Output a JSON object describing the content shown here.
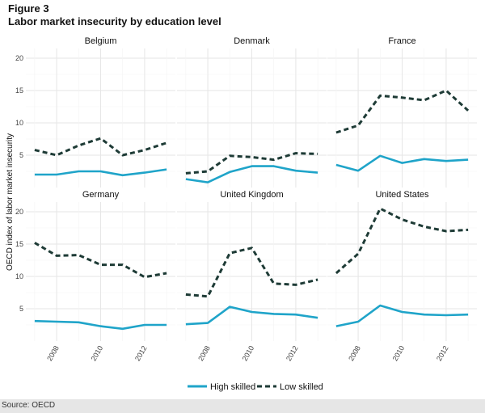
{
  "figure_label": "Figure 3",
  "title": "Labor market insecurity by education level",
  "source": "Source: OECD",
  "chart_data": {
    "type": "line",
    "ylabel": "OECD index of labor market insecurity",
    "xlabel": "",
    "x": [
      2007,
      2008,
      2009,
      2010,
      2011,
      2012,
      2013
    ],
    "x_ticks": [
      2008,
      2010,
      2012
    ],
    "y_ticks": [
      5,
      10,
      15,
      20
    ],
    "xlim": [
      2006.6,
      2013.4
    ],
    "ylim": [
      0,
      21.5
    ],
    "grid": true,
    "legend_position": "bottom",
    "colors": {
      "High skilled": "#1fa4c9",
      "Low skilled": "#1e3b36"
    },
    "legend": [
      "High skilled",
      "Low skilled"
    ],
    "panels": [
      {
        "title": "Belgium",
        "series": [
          {
            "name": "High skilled",
            "values": [
              2.0,
              2.0,
              2.5,
              2.5,
              1.9,
              2.3,
              2.8
            ]
          },
          {
            "name": "Low skilled",
            "values": [
              5.8,
              5.0,
              6.5,
              7.6,
              5.0,
              5.8,
              6.9
            ]
          }
        ]
      },
      {
        "title": "Denmark",
        "series": [
          {
            "name": "High skilled",
            "values": [
              1.3,
              0.8,
              2.4,
              3.3,
              3.3,
              2.6,
              2.3
            ]
          },
          {
            "name": "Low skilled",
            "values": [
              2.2,
              2.5,
              4.9,
              4.7,
              4.3,
              5.3,
              5.2
            ]
          }
        ]
      },
      {
        "title": "France",
        "series": [
          {
            "name": "High skilled",
            "values": [
              3.5,
              2.6,
              4.9,
              3.8,
              4.4,
              4.1,
              4.3
            ]
          },
          {
            "name": "Low skilled",
            "values": [
              8.5,
              9.6,
              14.2,
              13.9,
              13.5,
              15.0,
              11.9
            ]
          }
        ]
      },
      {
        "title": "Germany",
        "series": [
          {
            "name": "High skilled",
            "values": [
              3.1,
              3.0,
              2.9,
              2.3,
              1.9,
              2.5,
              2.5
            ]
          },
          {
            "name": "Low skilled",
            "values": [
              15.2,
              13.2,
              13.3,
              11.8,
              11.8,
              9.9,
              10.5
            ]
          }
        ]
      },
      {
        "title": "United Kingdom",
        "series": [
          {
            "name": "High skilled",
            "values": [
              2.6,
              2.8,
              5.3,
              4.5,
              4.2,
              4.1,
              3.6
            ]
          },
          {
            "name": "Low skilled",
            "values": [
              7.2,
              6.9,
              13.6,
              14.4,
              8.9,
              8.7,
              9.5
            ]
          }
        ]
      },
      {
        "title": "United States",
        "series": [
          {
            "name": "High skilled",
            "values": [
              2.3,
              3.0,
              5.5,
              4.5,
              4.1,
              4.0,
              4.1
            ]
          },
          {
            "name": "Low skilled",
            "values": [
              10.5,
              13.5,
              20.5,
              18.8,
              17.7,
              17.0,
              17.2
            ]
          }
        ]
      }
    ]
  }
}
